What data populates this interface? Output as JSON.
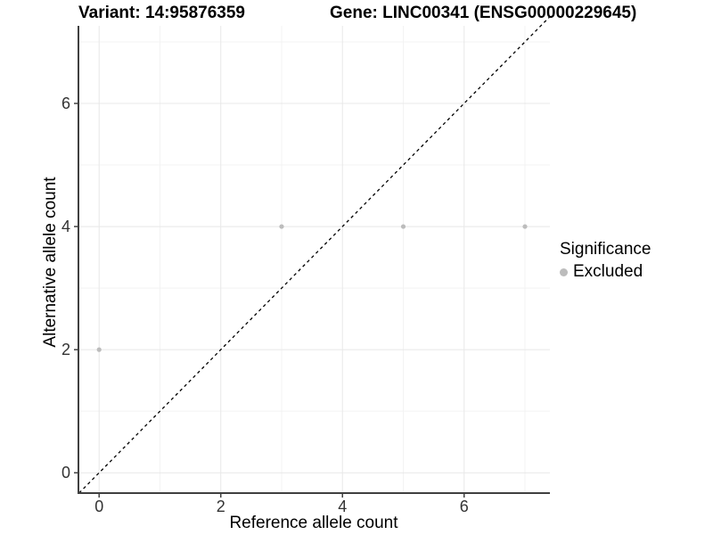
{
  "titles": {
    "variant": "Variant: 14:95876359",
    "gene": "Gene: LINC00341 (ENSG00000229645)"
  },
  "legend": {
    "title": "Significance",
    "items": [
      {
        "label": "Excluded",
        "color": "#bcbcbc"
      }
    ]
  },
  "colors": {
    "background": "#ffffff",
    "grid_major": "#e8e8e8",
    "grid_minor": "#f3f3f3",
    "axis": "#404040",
    "tick_label": "#333333",
    "reference_line": "#000000"
  },
  "chart_data": {
    "type": "scatter",
    "title": "Variant: 14:95876359 — Gene: LINC00341 (ENSG00000229645)",
    "xlabel": "Reference allele count",
    "ylabel": "Alternative allele count",
    "xlim": [
      -0.34,
      7.41
    ],
    "ylim": [
      -0.33,
      7.26
    ],
    "x_ticks": [
      0,
      2,
      4,
      6
    ],
    "y_ticks": [
      0,
      2,
      4,
      6
    ],
    "x_minor_ticks": [
      1,
      3,
      5,
      7
    ],
    "y_minor_ticks": [
      1,
      3,
      5,
      7
    ],
    "grid": true,
    "legend_position": "right",
    "series": [
      {
        "name": "Excluded",
        "color": "#bcbcbc",
        "points": [
          [
            0,
            2
          ],
          [
            3,
            4
          ],
          [
            5,
            4
          ],
          [
            7,
            4
          ]
        ]
      }
    ],
    "reference_line": {
      "type": "abline",
      "slope": 1,
      "intercept": 0,
      "style": "dashed"
    }
  }
}
